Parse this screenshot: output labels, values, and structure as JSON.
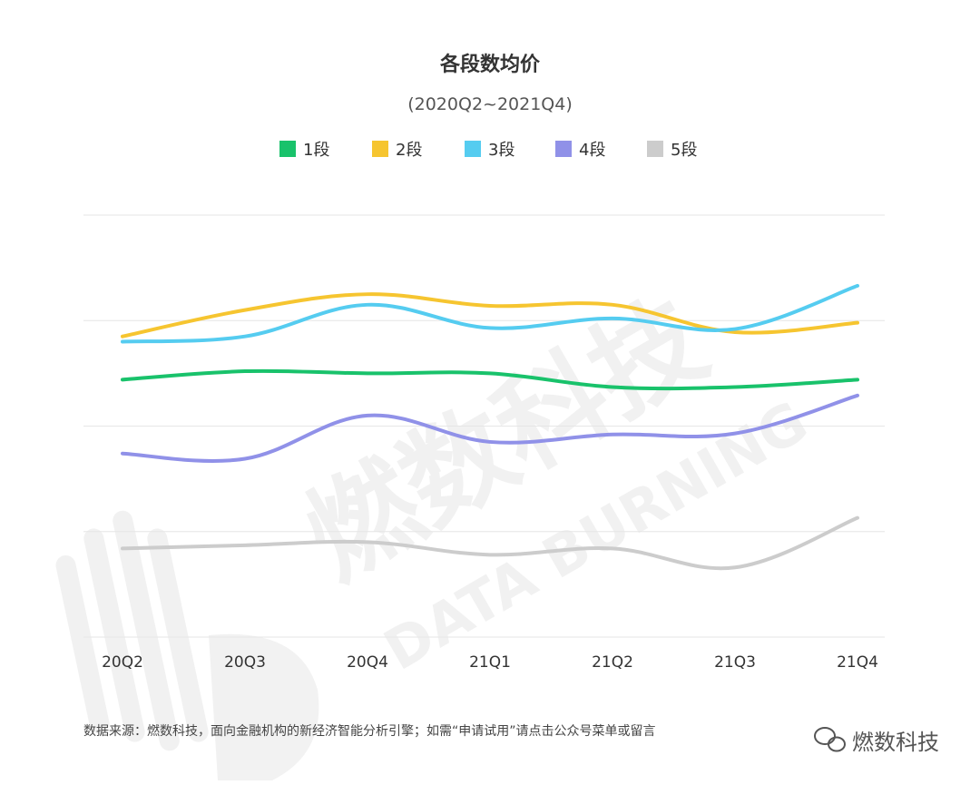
{
  "chart_data": {
    "type": "line",
    "title": "各段数均价",
    "subtitle": "(2020Q2~2021Q4)",
    "categories": [
      "20Q2",
      "20Q3",
      "20Q4",
      "21Q1",
      "21Q2",
      "21Q3",
      "21Q4"
    ],
    "yticks": [
      0,
      1,
      2,
      3,
      4
    ],
    "ylim": [
      0,
      4
    ],
    "grid": true,
    "legend_position": "top-center",
    "series": [
      {
        "name": "1段",
        "color": "#19c26b",
        "values": [
          2.44,
          2.52,
          2.5,
          2.5,
          2.37,
          2.37,
          2.44
        ]
      },
      {
        "name": "2段",
        "color": "#f6c530",
        "values": [
          2.85,
          3.1,
          3.25,
          3.14,
          3.15,
          2.89,
          2.98
        ]
      },
      {
        "name": "3段",
        "color": "#55ccf0",
        "values": [
          2.8,
          2.85,
          3.15,
          2.93,
          3.02,
          2.92,
          3.33
        ]
      },
      {
        "name": "4段",
        "color": "#9091e8",
        "values": [
          1.74,
          1.69,
          2.1,
          1.85,
          1.92,
          1.93,
          2.29
        ]
      },
      {
        "name": "5段",
        "color": "#cccccc",
        "values": [
          0.84,
          0.87,
          0.9,
          0.78,
          0.84,
          0.66,
          1.13
        ]
      }
    ]
  },
  "watermark": {
    "cn": "燃数科技",
    "en": "DATA BURNING"
  },
  "footer": {
    "source_note": "数据来源：燃数科技，面向金融机构的新经济智能分析引擎；如需“申请试用”请点击公众号菜单或留言",
    "brand": "燃数科技",
    "brand_icon": "wechat-icon"
  }
}
